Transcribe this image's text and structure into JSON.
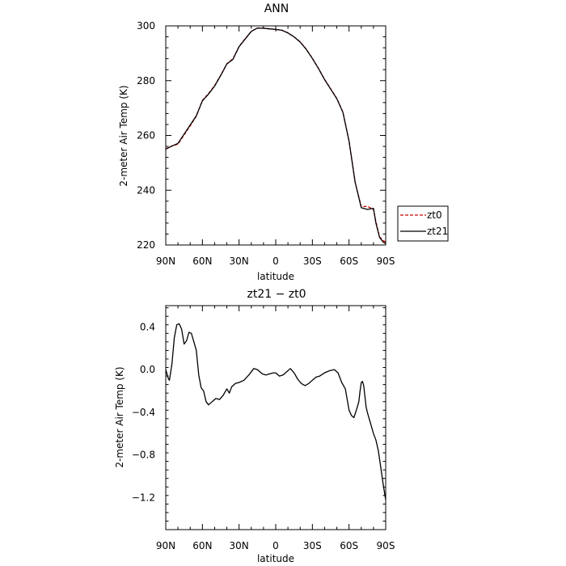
{
  "chart_data": [
    {
      "type": "line",
      "title": "ANN",
      "xlabel": "latitude",
      "ylabel": "2-meter Air Temp (K)",
      "xlim": [
        90,
        -90
      ],
      "ylim": [
        220,
        300
      ],
      "x_tick_values": [
        90,
        60,
        30,
        0,
        -30,
        -60,
        -90
      ],
      "x_tick_labels": [
        "90N",
        "60N",
        "30N",
        "0",
        "30S",
        "60S",
        "90S"
      ],
      "y_ticks": [
        220,
        240,
        260,
        280,
        300
      ],
      "legend": {
        "placement": "right-outside"
      },
      "series": [
        {
          "name": "zt0",
          "color": "#cc0000",
          "style": "dashed",
          "x": [
            90,
            85,
            80,
            75,
            70,
            65,
            60,
            55,
            50,
            45,
            40,
            35,
            30,
            25,
            20,
            15,
            10,
            5,
            0,
            -5,
            -10,
            -15,
            -20,
            -25,
            -30,
            -35,
            -40,
            -45,
            -50,
            -55,
            -60,
            -65,
            -70,
            -75,
            -80,
            -82,
            -85,
            -88,
            -90
          ],
          "y": [
            255.1,
            256.2,
            256.8,
            260.2,
            263.5,
            267.0,
            272.8,
            275.3,
            278.2,
            282.0,
            286.2,
            288.0,
            292.5,
            295.3,
            298.0,
            299.2,
            299.2,
            298.9,
            298.7,
            298.4,
            297.5,
            296.0,
            294.2,
            291.5,
            288.2,
            284.5,
            280.5,
            277.0,
            273.5,
            268.5,
            258.0,
            243.0,
            234.0,
            234.1,
            233.0,
            228.5,
            223.0,
            221.6,
            221.0
          ]
        },
        {
          "name": "zt21",
          "color": "#000000",
          "style": "solid",
          "x": [
            90,
            85,
            80,
            75,
            70,
            65,
            60,
            55,
            50,
            45,
            40,
            35,
            30,
            25,
            20,
            15,
            10,
            5,
            0,
            -5,
            -10,
            -15,
            -20,
            -25,
            -30,
            -35,
            -40,
            -45,
            -50,
            -55,
            -60,
            -65,
            -70,
            -75,
            -80,
            -82,
            -85,
            -88,
            -90
          ],
          "y": [
            255.0,
            256.1,
            257.1,
            260.5,
            263.8,
            267.2,
            272.6,
            275.1,
            278.0,
            281.9,
            286.1,
            287.8,
            292.4,
            295.2,
            298.0,
            299.2,
            299.1,
            298.9,
            298.7,
            298.4,
            297.4,
            296.0,
            294.1,
            291.4,
            288.1,
            284.4,
            280.4,
            276.9,
            273.4,
            268.4,
            257.9,
            242.9,
            233.6,
            233.0,
            233.4,
            228.0,
            222.8,
            221.0,
            220.5
          ]
        }
      ]
    },
    {
      "type": "line",
      "title": "zt21 − zt0",
      "xlabel": "latitude",
      "ylabel": "2-meter Air Temp (K)",
      "xlim": [
        90,
        -90
      ],
      "ylim": [
        -1.5,
        0.6
      ],
      "x_tick_values": [
        90,
        60,
        30,
        0,
        -30,
        -60,
        -90
      ],
      "x_tick_labels": [
        "90N",
        "60N",
        "30N",
        "0",
        "30S",
        "60S",
        "90S"
      ],
      "y_ticks": [
        -1.2,
        -0.8,
        -0.4,
        0.0,
        0.4
      ],
      "y_tick_labels": [
        "−1.2",
        "−0.8",
        "−0.4",
        "0.0",
        "0.4"
      ],
      "series": [
        {
          "color": "#000000",
          "style": "solid",
          "x": [
            90,
            88,
            87,
            85,
            83,
            81,
            79,
            77,
            75,
            73,
            71,
            69,
            67,
            65,
            63,
            61,
            59,
            57,
            55,
            52,
            49,
            46,
            43,
            40,
            38,
            36,
            33,
            30,
            26,
            22,
            18,
            15,
            13,
            11,
            8,
            5,
            2,
            0,
            -3,
            -6,
            -9,
            -12,
            -15,
            -18,
            -21,
            -24,
            -27,
            -30,
            -33,
            -36,
            -40,
            -44,
            -48,
            -51,
            -54,
            -57,
            -60,
            -62,
            -64,
            -66,
            -68,
            -69,
            -70,
            -71,
            -72,
            -73,
            -74,
            -75,
            -76,
            -77,
            -78,
            -79,
            -80,
            -82,
            -84,
            -86,
            -88,
            -90
          ],
          "y": [
            0.0,
            -0.08,
            -0.1,
            0.05,
            0.3,
            0.42,
            0.43,
            0.38,
            0.24,
            0.27,
            0.35,
            0.34,
            0.26,
            0.18,
            -0.05,
            -0.17,
            -0.2,
            -0.3,
            -0.33,
            -0.3,
            -0.27,
            -0.28,
            -0.24,
            -0.18,
            -0.22,
            -0.16,
            -0.13,
            -0.12,
            -0.1,
            -0.05,
            0.01,
            0.0,
            -0.02,
            -0.04,
            -0.05,
            -0.04,
            -0.03,
            -0.03,
            -0.06,
            -0.05,
            -0.02,
            0.01,
            -0.03,
            -0.09,
            -0.13,
            -0.15,
            -0.13,
            -0.1,
            -0.07,
            -0.06,
            -0.03,
            -0.01,
            0.0,
            -0.03,
            -0.12,
            -0.18,
            -0.38,
            -0.43,
            -0.45,
            -0.38,
            -0.3,
            -0.2,
            -0.12,
            -0.11,
            -0.15,
            -0.25,
            -0.35,
            -0.4,
            -0.44,
            -0.48,
            -0.52,
            -0.56,
            -0.6,
            -0.66,
            -0.76,
            -0.92,
            -1.08,
            -1.22
          ]
        }
      ]
    }
  ]
}
